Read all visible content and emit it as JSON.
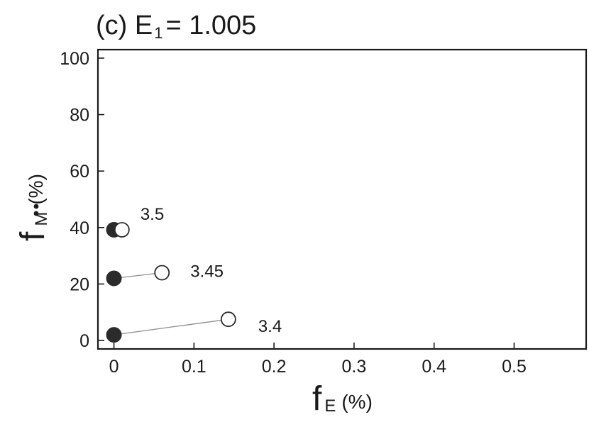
{
  "chart_data": {
    "type": "scatter",
    "title": {
      "prefix": "(c) E",
      "sub": "1",
      "suffix": "= 1.005"
    },
    "xlabel": {
      "main": "f",
      "sub": "E",
      "unit": "(%)"
    },
    "ylabel": {
      "main": "f",
      "sub": "M",
      "unit": "(%)"
    },
    "xlim": [
      -0.02,
      0.59
    ],
    "ylim": [
      -3,
      103
    ],
    "x_ticks": [
      0,
      0.1,
      0.2,
      0.3,
      0.4,
      0.5
    ],
    "x_tick_labels": [
      "0",
      "0.1",
      "0.2",
      "0.3",
      "0.4",
      "0.5"
    ],
    "y_ticks": [
      0,
      20,
      40,
      60,
      80,
      100
    ],
    "y_tick_labels": [
      "0",
      "20",
      "40",
      "60",
      "80",
      "100"
    ],
    "grid": false,
    "series": [
      {
        "marker": "filled-circle",
        "color": "#2b2b2b",
        "points": [
          {
            "x": 0.0,
            "y": 39.2
          },
          {
            "x": 0.0,
            "y": 22.0
          },
          {
            "x": 0.0,
            "y": 2.0
          }
        ]
      },
      {
        "marker": "open-circle",
        "color": "#2b2b2b",
        "points": [
          {
            "x": 0.01,
            "y": 39.2,
            "label": "3.5"
          },
          {
            "x": 0.06,
            "y": 24.0,
            "label": "3.45"
          },
          {
            "x": 0.143,
            "y": 7.5,
            "label": "3.4"
          }
        ]
      }
    ]
  }
}
